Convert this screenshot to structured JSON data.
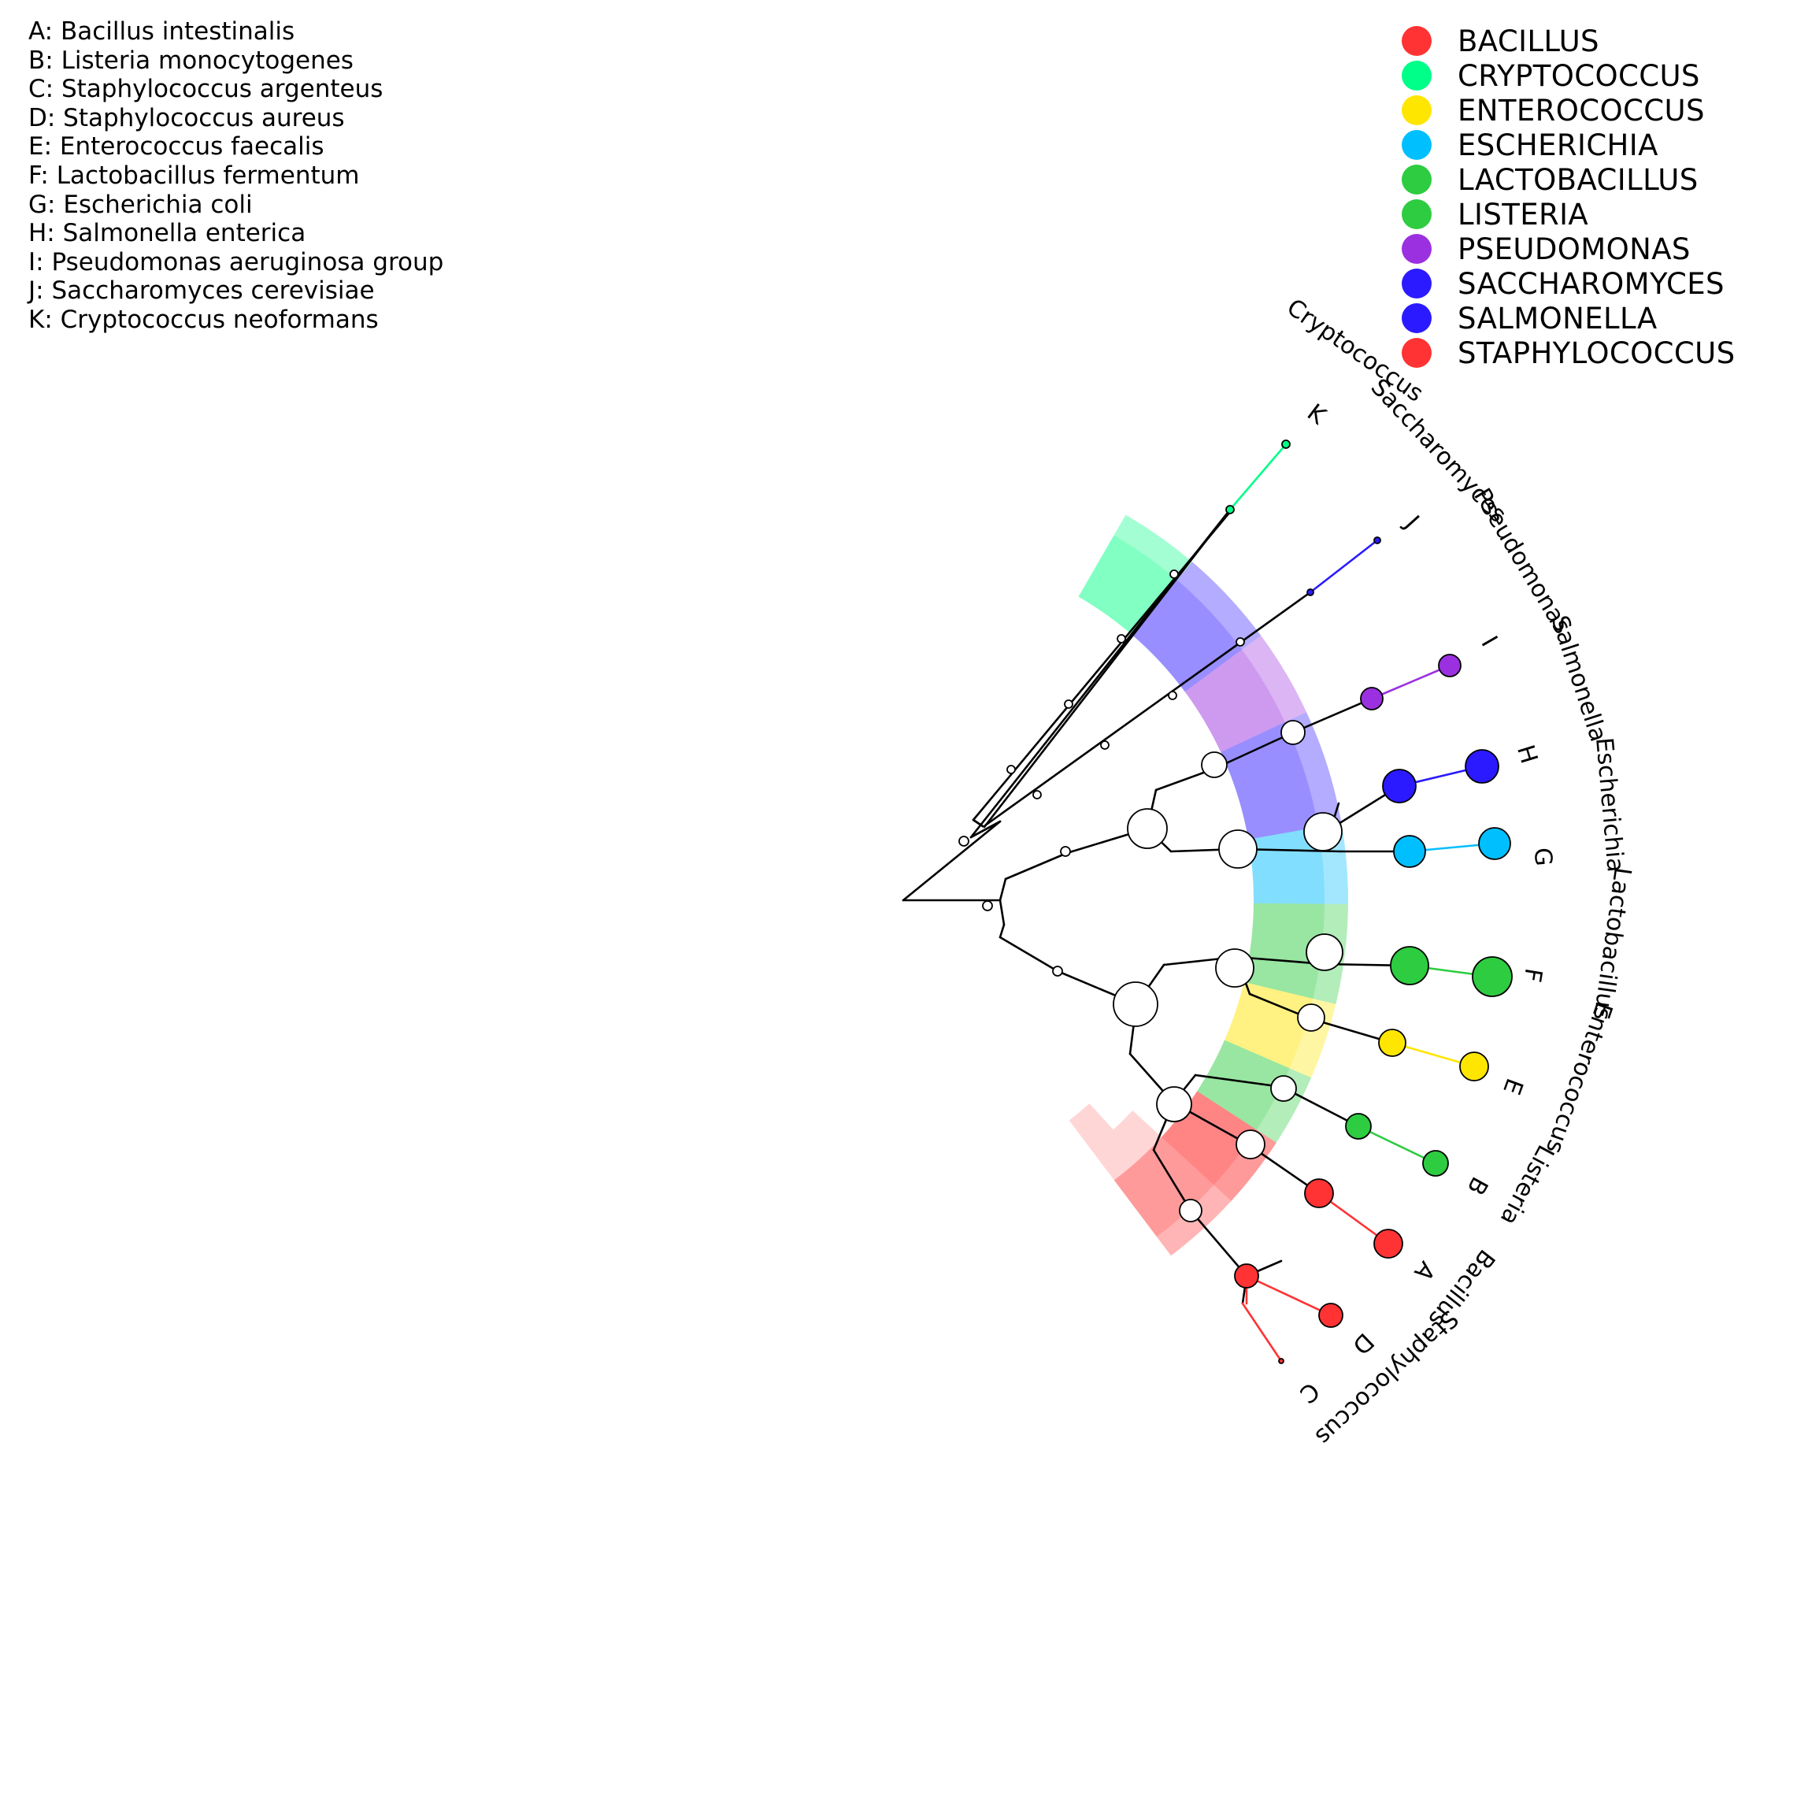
{
  "key": [
    {
      "letter": "A",
      "text": "A: Bacillus intestinalis"
    },
    {
      "letter": "B",
      "text": "B: Listeria monocytogenes"
    },
    {
      "letter": "C",
      "text": "C: Staphylococcus argenteus"
    },
    {
      "letter": "D",
      "text": "D: Staphylococcus aureus"
    },
    {
      "letter": "E",
      "text": "E: Enterococcus faecalis"
    },
    {
      "letter": "F",
      "text": "F: Lactobacillus fermentum"
    },
    {
      "letter": "G",
      "text": "G: Escherichia coli"
    },
    {
      "letter": "H",
      "text": "H: Salmonella enterica"
    },
    {
      "letter": "I",
      "text": "I: Pseudomonas aeruginosa group"
    },
    {
      "letter": "J",
      "text": "J: Saccharomyces cerevisiae"
    },
    {
      "letter": "K",
      "text": "K: Cryptococcus neoformans"
    }
  ],
  "legend": [
    {
      "label": "BACILLUS",
      "color": "#ff3333"
    },
    {
      "label": "CRYPTOCOCCUS",
      "color": "#00ff88"
    },
    {
      "label": "ENTEROCOCCUS",
      "color": "#ffe600"
    },
    {
      "label": "ESCHERICHIA",
      "color": "#00bfff"
    },
    {
      "label": "LACTOBACILLUS",
      "color": "#2ecc40"
    },
    {
      "label": "LISTERIA",
      "color": "#2ecc40"
    },
    {
      "label": "PSEUDOMONAS",
      "color": "#9b30e0"
    },
    {
      "label": "SACCHAROMYCES",
      "color": "#2b1aff"
    },
    {
      "label": "SALMONELLA",
      "color": "#2b1aff"
    },
    {
      "label": "STAPHYLOCOCCUS",
      "color": "#ff3333"
    }
  ],
  "genus_labels": [
    {
      "text": "Cryptococcus",
      "color": "#00ff88"
    },
    {
      "text": "Saccharomyces",
      "color": "#2b1aff"
    },
    {
      "text": "Pseudomonas",
      "color": "#9b30e0"
    },
    {
      "text": "Salmonella",
      "color": "#2b1aff"
    },
    {
      "text": "Escherichia",
      "color": "#00bfff"
    },
    {
      "text": "Lactobacillus",
      "color": "#2ecc40"
    },
    {
      "text": "Enterococcus",
      "color": "#ffe600"
    },
    {
      "text": "Listeria",
      "color": "#2ecc40"
    },
    {
      "text": "Bacillus",
      "color": "#ff3333"
    },
    {
      "text": "Staphylococcus",
      "color": "#ff3333"
    }
  ],
  "leaf_letters": [
    "K",
    "J",
    "I",
    "H",
    "G",
    "F",
    "E",
    "B",
    "A",
    "D",
    "C"
  ]
}
